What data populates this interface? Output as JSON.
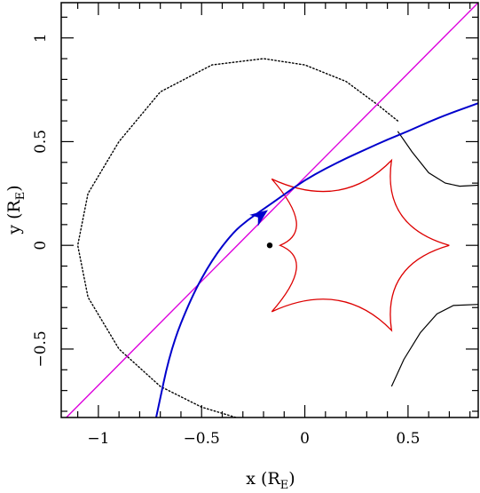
{
  "chart_data": {
    "type": "line",
    "title": "",
    "xlabel": {
      "main": "x (R",
      "sub": "E",
      "close": ")"
    },
    "ylabel": {
      "main": "y (R",
      "sub": "E",
      "close": ")"
    },
    "xlim": [
      -1.18,
      0.84
    ],
    "ylim": [
      -0.83,
      1.17
    ],
    "x_ticks": [
      -1,
      -0.5,
      0,
      0.5
    ],
    "x_tick_labels": [
      "−1",
      "−0.5",
      "0",
      "0.5"
    ],
    "y_ticks": [
      -0.5,
      0,
      0.5,
      1
    ],
    "y_tick_labels": [
      "−0.5",
      "0",
      "0.5",
      "1"
    ],
    "grid": false,
    "colors": {
      "trajectory": "#0000cc",
      "straight_line": "#dd00dd",
      "caustic": "#dd0000",
      "critical_curve": "#000000",
      "lens_point": "#000000"
    },
    "series": [
      {
        "style": "solid magenta line",
        "x": [
          -1.18,
          0.84
        ],
        "y": [
          -0.855,
          1.17
        ]
      },
      {
        "style": "solid blue curve with arrow",
        "x": [
          -0.72,
          -0.65,
          -0.55,
          -0.45,
          -0.35,
          -0.28,
          -0.2,
          -0.1,
          0.0,
          0.1,
          0.2,
          0.3,
          0.4,
          0.5,
          0.6,
          0.7,
          0.84
        ],
        "y": [
          -0.83,
          -0.5,
          -0.25,
          -0.07,
          0.06,
          0.12,
          0.175,
          0.245,
          0.315,
          0.37,
          0.42,
          0.465,
          0.51,
          0.55,
          0.595,
          0.635,
          0.685
        ],
        "arrow_at": [
          -0.22,
          0.14
        ]
      },
      {
        "style": "dotted red caustic",
        "cusps": [
          [
            0.7,
            0.0
          ],
          [
            0.42,
            0.41
          ],
          [
            -0.16,
            0.32
          ],
          [
            -0.12,
            0.0
          ],
          [
            -0.16,
            -0.32
          ],
          [
            0.42,
            -0.41
          ]
        ]
      },
      {
        "style": "dotted black critical curve",
        "x": [
          0.45,
          0.35,
          0.2,
          0.0,
          -0.2,
          -0.45,
          -0.7,
          -0.9,
          -1.05,
          -1.1,
          -1.05,
          -0.9,
          -0.7,
          -0.5,
          -0.3,
          -0.1,
          0.05,
          0.1
        ],
        "y": [
          0.6,
          0.68,
          0.79,
          0.87,
          0.9,
          0.87,
          0.74,
          0.5,
          0.25,
          0.0,
          -0.25,
          -0.5,
          -0.68,
          -0.78,
          -0.84,
          -0.86,
          -0.85,
          -0.83
        ]
      },
      {
        "style": "solid black critical curve",
        "x": [
          0.45,
          0.52,
          0.6,
          0.68,
          0.75,
          0.84
        ],
        "y": [
          0.55,
          0.45,
          0.35,
          0.3,
          0.285,
          0.29
        ]
      },
      {
        "style": "solid black critical curve",
        "x": [
          0.42,
          0.48,
          0.56,
          0.64,
          0.72,
          0.84
        ],
        "y": [
          -0.68,
          -0.55,
          -0.42,
          -0.33,
          -0.29,
          -0.285
        ]
      }
    ],
    "points": [
      {
        "x": -0.17,
        "y": 0.0,
        "marker": "filled circle"
      }
    ]
  }
}
